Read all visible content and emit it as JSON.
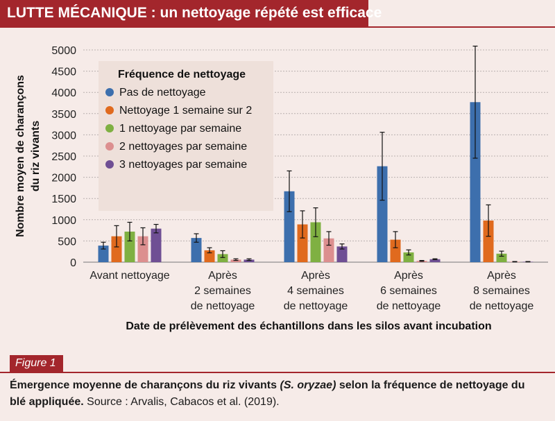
{
  "header": {
    "title_strong": "LUTTE MÉCANIQUE :",
    "title_rest": "un nettoyage répété est efficace"
  },
  "figure": {
    "badge": "Figure 1",
    "caption_bold_1": "Émergence moyenne de charançons du riz vivants",
    "caption_italic": "(S. oryzae)",
    "caption_bold_2": "selon la fréquence de nettoyage du blé appliquée.",
    "caption_source": "Source : Arvalis, Cabacos et al. (2019)."
  },
  "colors": {
    "accent": "#a3262c",
    "series": [
      "#3d6fad",
      "#e06a1e",
      "#7fb042",
      "#dc8f8f",
      "#6f4f94"
    ]
  },
  "chart_data": {
    "type": "bar",
    "title": "",
    "xlabel": "Date de prélèvement des échantillons dans les silos avant incubation",
    "ylabel": [
      "Nombre moyen de charançons",
      "du riz vivants"
    ],
    "ylim": [
      0,
      5000
    ],
    "yticks": [
      0,
      500,
      1000,
      1500,
      2000,
      2500,
      3000,
      3500,
      4000,
      4500,
      5000
    ],
    "grid": true,
    "categories": [
      [
        "Avant nettoyage"
      ],
      [
        "Après",
        "2 semaines",
        "de nettoyage"
      ],
      [
        "Après",
        "4 semaines",
        "de nettoyage"
      ],
      [
        "Après",
        "6 semaines",
        "de nettoyage"
      ],
      [
        "Après",
        "8 semaines",
        "de nettoyage"
      ]
    ],
    "legend": {
      "title": "Fréquence de nettoyage",
      "placement": "top-left"
    },
    "series": [
      {
        "name": "Pas de nettoyage",
        "values": [
          390,
          570,
          1670,
          2260,
          3770
        ],
        "err": [
          80,
          100,
          480,
          800,
          1320
        ]
      },
      {
        "name": "Nettoyage 1 semaine sur 2",
        "values": [
          610,
          280,
          890,
          530,
          980
        ],
        "err": [
          250,
          60,
          320,
          190,
          370
        ]
      },
      {
        "name": "1 nettoyage par semaine",
        "values": [
          720,
          190,
          940,
          230,
          200
        ],
        "err": [
          220,
          80,
          340,
          60,
          60
        ]
      },
      {
        "name": "2 nettoyages par semaine",
        "values": [
          610,
          60,
          560,
          30,
          10
        ],
        "err": [
          200,
          20,
          160,
          10,
          5
        ]
      },
      {
        "name": "3 nettoyages par semaine",
        "values": [
          790,
          60,
          370,
          70,
          10
        ],
        "err": [
          100,
          20,
          60,
          10,
          5
        ]
      }
    ]
  }
}
